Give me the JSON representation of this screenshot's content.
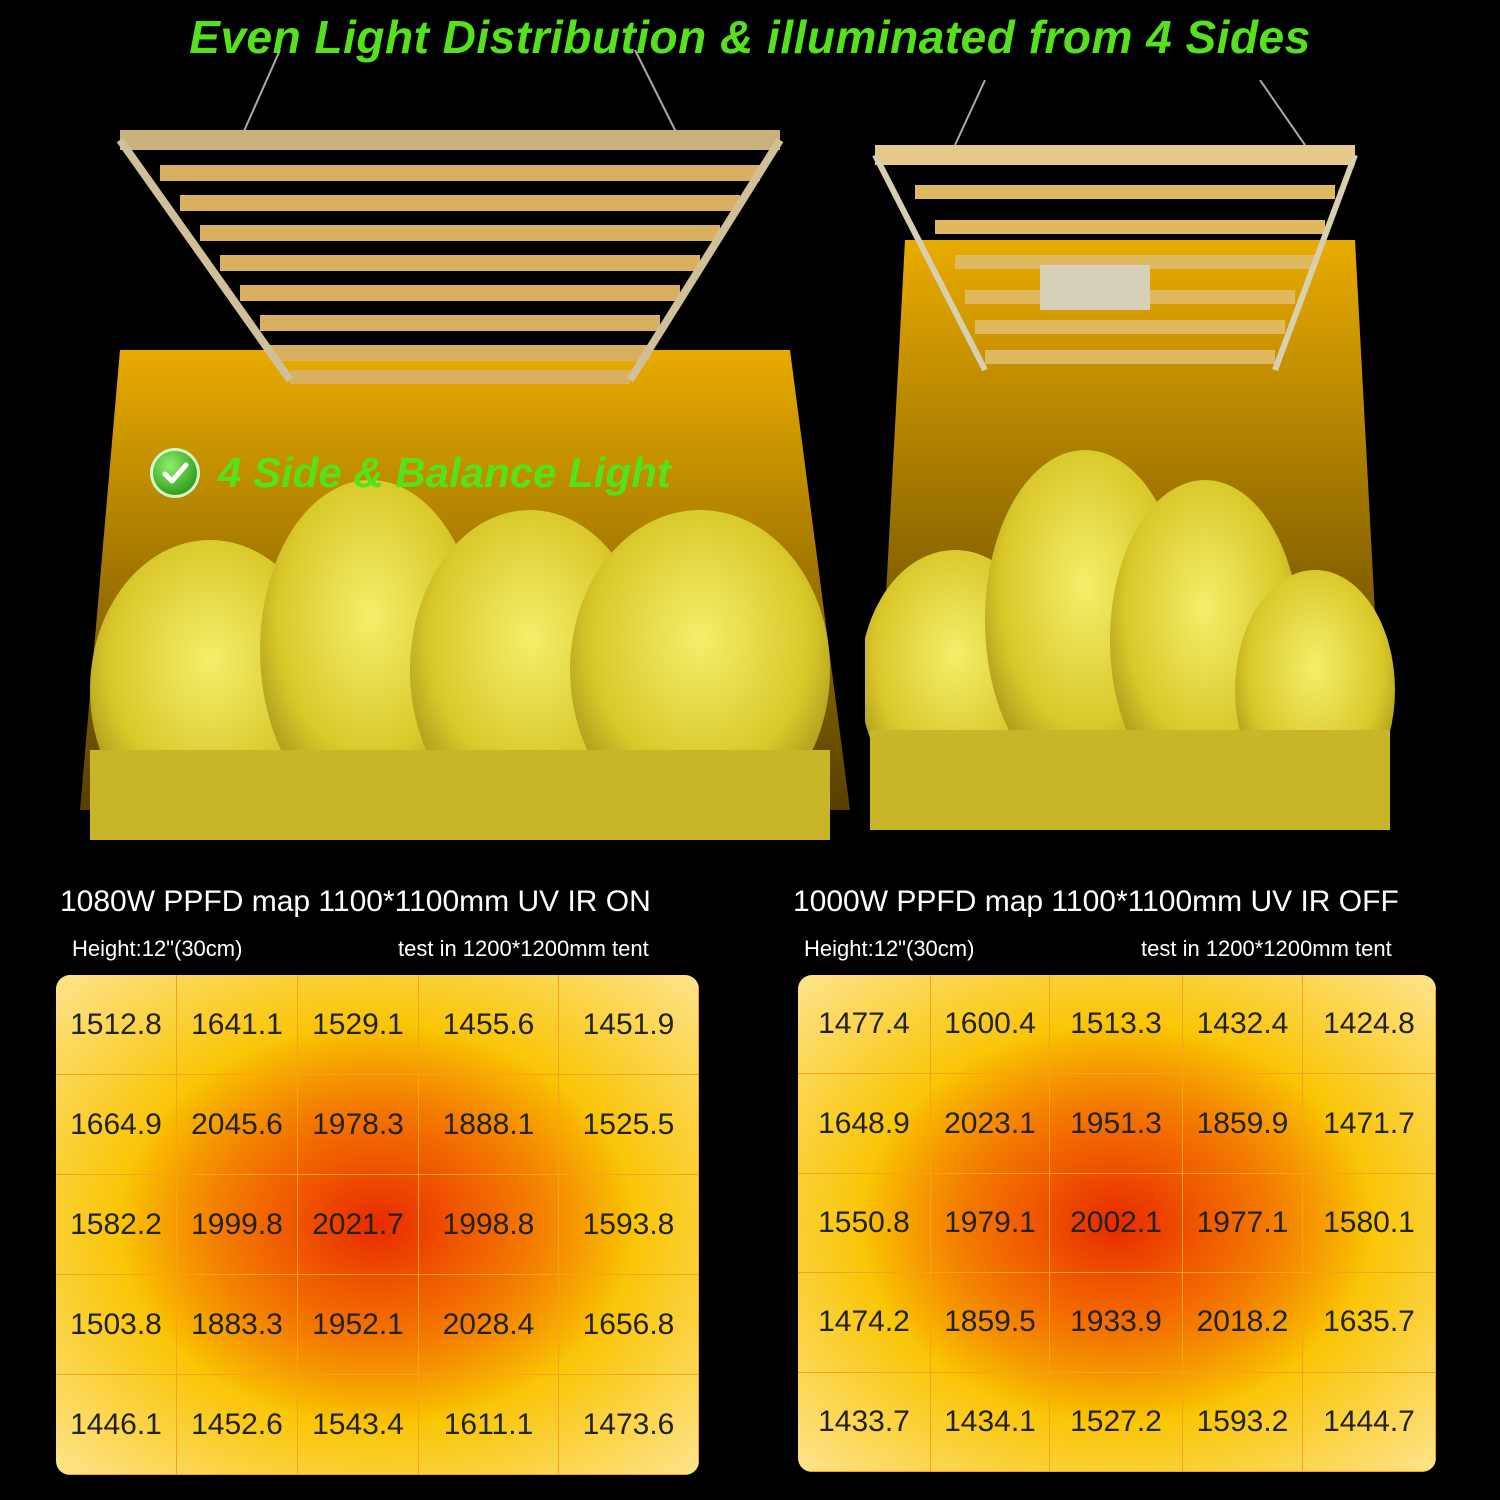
{
  "headline": "Even Light Distribution & illuminated from 4 Sides",
  "badge": {
    "text": "4 Side & Balance Light",
    "icon": "checkmark-icon"
  },
  "colors": {
    "headline_green": "#55e21d",
    "glow": "#f5b400",
    "hot": "#e82a00"
  },
  "left_map": {
    "title": "1080W PPFD map   1100*1100mm UV IR ON",
    "height": "Height:12\"(30cm)",
    "tent": "test in 1200*1200mm tent",
    "rows": [
      [
        "1512.8",
        "1641.1",
        "1529.1",
        "1455.6",
        "1451.9"
      ],
      [
        "1664.9",
        "2045.6",
        "1978.3",
        "1888.1",
        "1525.5"
      ],
      [
        "1582.2",
        "1999.8",
        "2021.7",
        "1998.8",
        "1593.8"
      ],
      [
        "1503.8",
        "1883.3",
        "1952.1",
        "2028.4",
        "1656.8"
      ],
      [
        "1446.1",
        "1452.6",
        "1543.4",
        "1611.1",
        "1473.6"
      ]
    ]
  },
  "right_map": {
    "title": "1000W PPFD map   1100*1100mm UV IR OFF",
    "height": "Height:12\"(30cm)",
    "tent": "test in 1200*1200mm tent",
    "rows": [
      [
        "1477.4",
        "1600.4",
        "1513.3",
        "1432.4",
        "1424.8"
      ],
      [
        "1648.9",
        "2023.1",
        "1951.3",
        "1859.9",
        "1471.7"
      ],
      [
        "1550.8",
        "1979.1",
        "2002.1",
        "1977.1",
        "1580.1"
      ],
      [
        "1474.2",
        "1859.5",
        "1933.9",
        "2018.2",
        "1635.7"
      ],
      [
        "1433.7",
        "1434.1",
        "1527.2",
        "1593.2",
        "1444.7"
      ]
    ]
  }
}
